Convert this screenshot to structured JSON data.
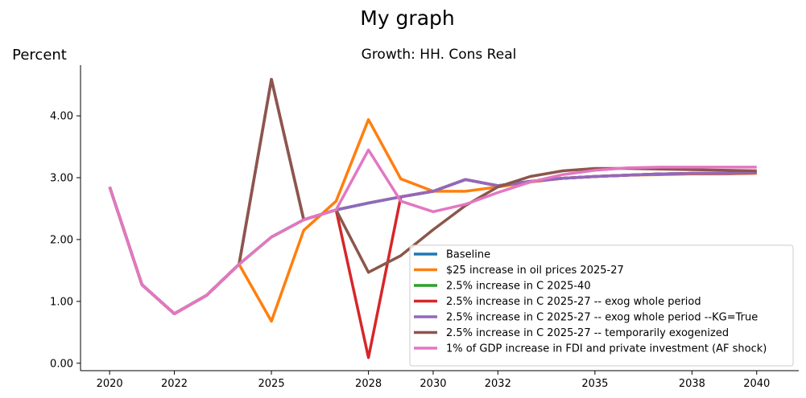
{
  "figure_title": "My graph",
  "chart_data": {
    "type": "line",
    "title": "Growth: HH. Cons Real",
    "ylabel": "Percent",
    "xlabel": "",
    "x": [
      2020,
      2021,
      2022,
      2023,
      2024,
      2025,
      2026,
      2027,
      2028,
      2029,
      2030,
      2031,
      2032,
      2033,
      2034,
      2035,
      2036,
      2037,
      2038,
      2039,
      2040
    ],
    "x_tick_values": [
      2020,
      2022,
      2025,
      2028,
      2030,
      2032,
      2035,
      2038,
      2040
    ],
    "x_tick_labels": [
      "2020",
      "2022",
      "2025",
      "2028",
      "2030",
      "2032",
      "2035",
      "2038",
      "2040"
    ],
    "xlim": [
      2019.1,
      2041.3
    ],
    "ylim": [
      -0.12,
      4.82
    ],
    "y_ticks": [
      0.0,
      1.0,
      2.0,
      3.0,
      4.0
    ],
    "y_tick_labels": [
      "0.00",
      "1.00",
      "2.00",
      "3.00",
      "4.00"
    ],
    "grid": false,
    "legend_position": "lower-right",
    "series": [
      {
        "name": "Baseline",
        "color": "#1f77b4",
        "values": [
          2.85,
          1.27,
          0.8,
          1.1,
          1.6,
          2.04,
          2.32,
          2.48,
          2.59,
          2.69,
          2.78,
          2.97,
          2.87,
          2.94,
          2.99,
          3.02,
          3.04,
          3.06,
          3.07,
          3.07,
          3.08
        ]
      },
      {
        "name": "$25 increase in oil prices 2025-27",
        "color": "#ff7f0e",
        "values": [
          2.85,
          1.27,
          0.8,
          1.1,
          1.6,
          0.68,
          2.15,
          2.62,
          3.94,
          2.98,
          2.78,
          2.78,
          2.85,
          2.93,
          2.99,
          3.02,
          3.04,
          3.05,
          3.06,
          3.06,
          3.07
        ]
      },
      {
        "name": "2.5% increase in C 2025-40",
        "color": "#2ca02c",
        "values": [
          2.85,
          1.27,
          0.8,
          1.1,
          1.6,
          2.04,
          2.32,
          2.48,
          2.59,
          2.69,
          2.78,
          2.97,
          2.87,
          2.94,
          2.99,
          3.02,
          3.04,
          3.06,
          3.07,
          3.07,
          3.08
        ]
      },
      {
        "name": "2.5% increase in C 2025-27 -- exog whole period",
        "color": "#d62728",
        "values": [
          2.85,
          1.27,
          0.8,
          1.1,
          1.6,
          4.59,
          2.32,
          2.48,
          0.09,
          2.69,
          2.78,
          2.97,
          2.87,
          2.94,
          2.99,
          3.02,
          3.04,
          3.06,
          3.07,
          3.07,
          3.08
        ]
      },
      {
        "name": "2.5% increase in C 2025-27 -- exog whole period --KG=True",
        "color": "#9467bd",
        "values": [
          2.85,
          1.27,
          0.8,
          1.1,
          1.6,
          4.59,
          2.32,
          2.48,
          2.59,
          2.69,
          2.78,
          2.97,
          2.87,
          2.94,
          2.99,
          3.02,
          3.04,
          3.06,
          3.07,
          3.07,
          3.08
        ]
      },
      {
        "name": "2.5% increase in C 2025-27 -- temporarily exogenized",
        "color": "#8c564b",
        "values": [
          2.85,
          1.27,
          0.8,
          1.1,
          1.6,
          4.59,
          2.32,
          2.48,
          1.47,
          1.74,
          2.16,
          2.55,
          2.85,
          3.02,
          3.11,
          3.15,
          3.15,
          3.14,
          3.13,
          3.12,
          3.11
        ]
      },
      {
        "name": "1% of GDP increase in FDI and private investment (AF shock)",
        "color": "#e377c2",
        "values": [
          2.85,
          1.27,
          0.8,
          1.1,
          1.6,
          2.04,
          2.32,
          2.48,
          3.45,
          2.62,
          2.45,
          2.57,
          2.76,
          2.93,
          3.05,
          3.12,
          3.16,
          3.17,
          3.17,
          3.17,
          3.17
        ]
      }
    ]
  }
}
